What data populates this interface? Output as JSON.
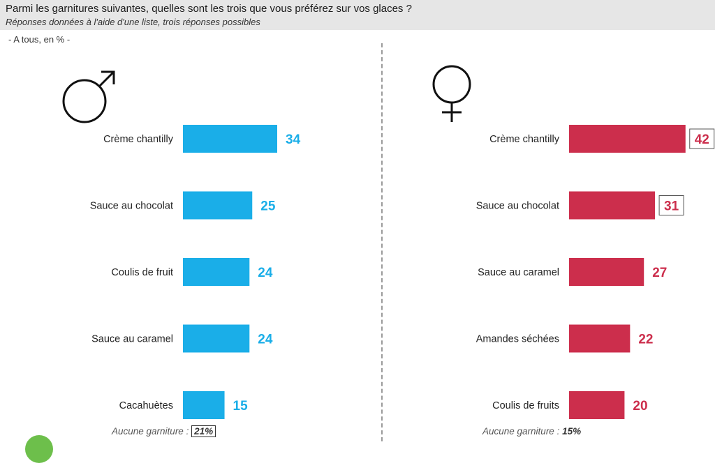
{
  "header": {
    "title": "Parmi les garnitures suivantes, quelles sont les trois que vous préférez sur vos glaces ?",
    "subtitle": "Réponses données à l'aide d'une liste, trois réponses possibles"
  },
  "base_label": "- A tous, en % -",
  "colors": {
    "men": "#1aaee8",
    "women": "#cc2e4c"
  },
  "icons": {
    "men": "male-symbol-icon",
    "women": "female-symbol-icon"
  },
  "footnotes": {
    "men": {
      "label": "Aucune garniture :",
      "value": "21%"
    },
    "women": {
      "label": "Aucune garniture :",
      "value": "15%"
    }
  },
  "chart_data": [
    {
      "type": "bar",
      "orientation": "horizontal",
      "categories": [
        "Crème chantilly",
        "Sauce au chocolat",
        "Coulis de fruit",
        "Sauce au caramel",
        "Cacahuètes"
      ],
      "values": [
        34,
        25,
        24,
        24,
        15
      ],
      "highlighted": [],
      "xlim": [
        0,
        50
      ]
    },
    {
      "type": "bar",
      "orientation": "horizontal",
      "categories": [
        "Crème chantilly",
        "Sauce au chocolat",
        "Sauce au caramel",
        "Amandes séchées",
        "Coulis de fruits"
      ],
      "values": [
        42,
        31,
        27,
        22,
        20
      ],
      "highlighted": [
        0,
        1
      ],
      "xlim": [
        0,
        50
      ]
    }
  ]
}
